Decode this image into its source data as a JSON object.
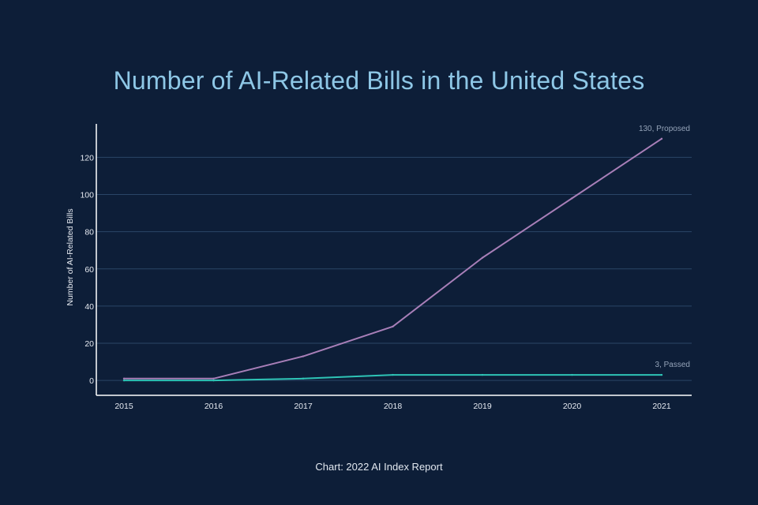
{
  "chart_data": {
    "type": "line",
    "title": "Number of AI-Related Bills in the United States",
    "xlabel": "",
    "ylabel": "Number of AI-Related Bills",
    "categories": [
      "2015",
      "2016",
      "2017",
      "2018",
      "2019",
      "2020",
      "2021"
    ],
    "yticks": [
      "0",
      "20",
      "40",
      "60",
      "80",
      "100",
      "120"
    ],
    "ylim": [
      -8,
      138
    ],
    "grid": true,
    "series": [
      {
        "name": "Proposed",
        "values": [
          1,
          1,
          13,
          29,
          66,
          98,
          130
        ],
        "color": "#a87fb8",
        "end_label": "130, Proposed"
      },
      {
        "name": "Passed",
        "values": [
          0,
          0,
          1,
          3,
          3,
          3,
          3
        ],
        "color": "#2ec4b6",
        "end_label": "3, Passed"
      }
    ],
    "source": "Chart: 2022 AI Index Report"
  }
}
